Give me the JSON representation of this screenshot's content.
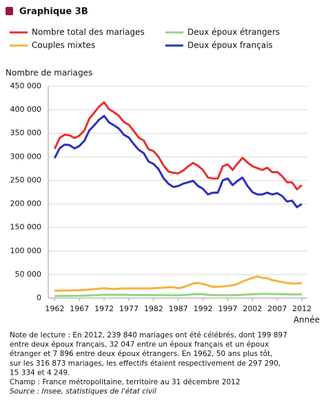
{
  "chart_data": {
    "type": "line",
    "title": "Graphique 3B",
    "ylabel": "Nombre de mariages",
    "xlabel": "Année",
    "x": [
      1962,
      1963,
      1964,
      1965,
      1966,
      1967,
      1968,
      1969,
      1970,
      1971,
      1972,
      1973,
      1974,
      1975,
      1976,
      1977,
      1978,
      1979,
      1980,
      1981,
      1982,
      1983,
      1984,
      1985,
      1986,
      1987,
      1988,
      1989,
      1990,
      1991,
      1992,
      1993,
      1994,
      1995,
      1996,
      1997,
      1998,
      1999,
      2000,
      2001,
      2002,
      2003,
      2004,
      2005,
      2006,
      2007,
      2008,
      2009,
      2010,
      2011,
      2012
    ],
    "series": [
      {
        "name": "Nombre total des mariages",
        "color": "#e8302e",
        "values": [
          316873,
          340000,
          347000,
          346000,
          340000,
          345000,
          356000,
          381000,
          394000,
          407000,
          416000,
          401000,
          395000,
          387000,
          374000,
          368000,
          355000,
          341000,
          335000,
          316000,
          312000,
          300000,
          282000,
          269000,
          266000,
          265000,
          271000,
          280000,
          287000,
          281000,
          272000,
          256000,
          254000,
          254000,
          280000,
          284000,
          272000,
          286000,
          298000,
          288000,
          280000,
          276000,
          272000,
          277000,
          267000,
          268000,
          259000,
          246000,
          246000,
          231000,
          239840
        ]
      },
      {
        "name": "Deux époux étrangers",
        "color": "#92d580",
        "values": [
          4249,
          4500,
          4600,
          4700,
          4800,
          5000,
          5200,
          5500,
          6000,
          6500,
          7000,
          7000,
          7000,
          7000,
          7000,
          6800,
          6500,
          6500,
          6500,
          6500,
          6500,
          6500,
          6300,
          6200,
          6000,
          6300,
          6500,
          7000,
          8000,
          8500,
          8000,
          7000,
          6500,
          6000,
          6000,
          6000,
          6000,
          6500,
          7000,
          7500,
          8000,
          8500,
          9000,
          9000,
          8500,
          8500,
          8000,
          8000,
          7800,
          7800,
          7896
        ]
      },
      {
        "name": "Couples mixtes",
        "color": "#f5b23c",
        "values": [
          15334,
          16000,
          16000,
          16000,
          16500,
          16500,
          17000,
          18000,
          19000,
          20000,
          21000,
          20000,
          19000,
          20000,
          20500,
          20500,
          20500,
          20500,
          20500,
          20500,
          21000,
          21500,
          22000,
          23000,
          23000,
          21000,
          23000,
          27000,
          31000,
          32000,
          30000,
          27000,
          24000,
          24000,
          24500,
          26000,
          27000,
          30000,
          35000,
          39000,
          43000,
          46000,
          43000,
          42000,
          38000,
          36000,
          34000,
          32000,
          31000,
          31000,
          32047
        ]
      },
      {
        "name": "Deux époux français",
        "color": "#2e2fb8",
        "values": [
          297290,
          318000,
          326000,
          325000,
          318000,
          323000,
          334000,
          356000,
          367000,
          379000,
          387000,
          373000,
          367000,
          360000,
          347000,
          341000,
          327000,
          315000,
          308000,
          290000,
          285000,
          274000,
          255000,
          243000,
          236000,
          238000,
          243000,
          246000,
          249000,
          238000,
          232000,
          220000,
          224000,
          224000,
          250000,
          254000,
          240000,
          249000,
          256000,
          238000,
          225000,
          220000,
          220000,
          224000,
          220000,
          223000,
          217000,
          205000,
          207000,
          193000,
          199897
        ]
      }
    ],
    "xlim": [
      1960.7,
      2013.1
    ],
    "xticks": [
      1962,
      1967,
      1972,
      1977,
      1982,
      1987,
      1992,
      1997,
      2002,
      2007,
      2012
    ],
    "ylim": [
      0,
      450000
    ],
    "yticks": [
      {
        "value": 0,
        "label": "0"
      },
      {
        "value": 50000,
        "label": "50 000"
      },
      {
        "value": 100000,
        "label": "100 000"
      },
      {
        "value": 150000,
        "label": "150 000"
      },
      {
        "value": 200000,
        "label": "200 000"
      },
      {
        "value": 250000,
        "label": "250 000"
      },
      {
        "value": 300000,
        "label": "300 000"
      },
      {
        "value": 350000,
        "label": "350 000"
      },
      {
        "value": 400000,
        "label": "400 000"
      },
      {
        "value": 450000,
        "label": "450 000"
      }
    ],
    "grid": true,
    "notes": [
      "Note de lecture : En 2012, 239 840 mariages ont été célébrés, dont 199 897",
      "entre deux époux français, 32 047 entre un époux français et un époux",
      "étranger et 7 896 entre deux époux étrangers. En 1962, 50 ans plus tôt,",
      "sur les 316 873 mariages, les effectifs étaient respectivement de 297 290,",
      "15 334 et 4 249.",
      "Champ : France métropolitaine, territoire au 31 décembre 2012",
      "Source : Insee, statistiques de l'état civil"
    ]
  }
}
